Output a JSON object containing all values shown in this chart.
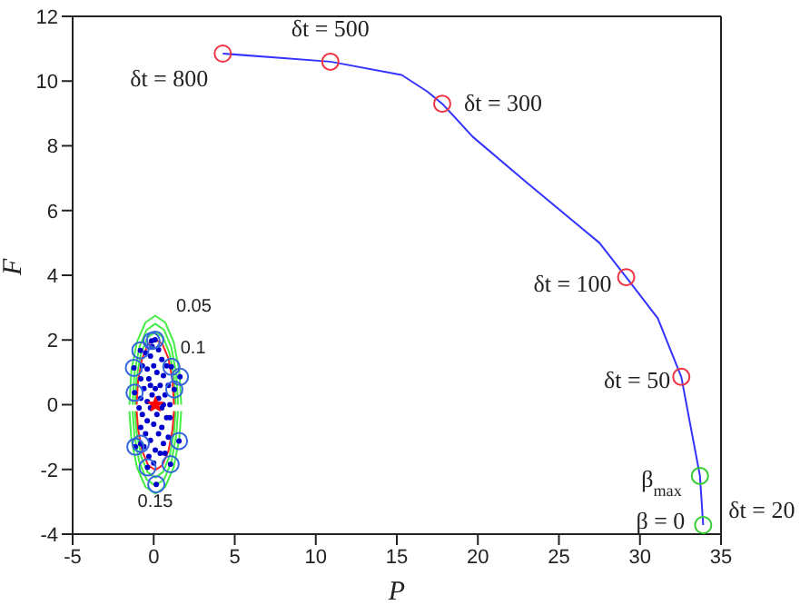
{
  "chart_data": {
    "type": "line",
    "xlabel": "P",
    "ylabel": "F",
    "xlim": [
      -5,
      35
    ],
    "ylim": [
      -4,
      12
    ],
    "xticks": [
      -5,
      0,
      5,
      10,
      15,
      20,
      25,
      30,
      35
    ],
    "yticks": [
      -4,
      -2,
      0,
      2,
      4,
      6,
      8,
      10,
      12
    ],
    "grid": false,
    "legend": false,
    "series": [
      {
        "color": "#3333ff",
        "marker": "none",
        "line_style": "solid",
        "x": [
          4.26,
          10.9,
          15.3,
          16.9,
          17.8,
          19.7,
          23.0,
          27.5,
          29.15,
          31.1,
          32.55,
          33.7,
          33.9
        ],
        "values": [
          10.85,
          10.6,
          10.19,
          9.67,
          9.3,
          8.27,
          6.87,
          5.0,
          3.94,
          2.67,
          0.86,
          -2.2,
          -3.72
        ]
      },
      {
        "type": "scatter",
        "color": "#ee3344",
        "marker": "circle",
        "x": [
          4.26,
          10.9,
          17.8,
          29.15,
          32.55
        ],
        "values": [
          10.85,
          10.6,
          9.3,
          3.94,
          0.86
        ]
      },
      {
        "type": "scatter",
        "color": "#33cc33",
        "marker": "circle",
        "x": [
          33.7,
          33.9
        ],
        "values": [
          -2.2,
          -3.72
        ]
      },
      {
        "color": "#44ee44",
        "marker": "none",
        "line_style": "solid",
        "x": [
          -1.5,
          -1.38,
          -1.03,
          -0.51,
          0.1,
          0.71,
          1.23,
          1.58,
          1.7
        ],
        "values": [
          0,
          1.05,
          1.94,
          2.54,
          2.75,
          2.54,
          1.94,
          1.05,
          0
        ]
      },
      {
        "color": "#44ee44",
        "marker": "none",
        "line_style": "solid",
        "x": [
          -1.5,
          -1.38,
          -1.03,
          -0.51,
          0.1,
          0.71,
          1.23,
          1.58,
          1.7
        ],
        "values": [
          -0.2,
          -1.05,
          -1.94,
          -2.54,
          -2.75,
          -2.54,
          -1.94,
          -1.05,
          -0.2
        ]
      },
      {
        "color": "#44ee44",
        "marker": "none",
        "line_style": "solid",
        "x": [
          -1.3,
          -1.19,
          -0.89,
          -0.44,
          0.1,
          0.64,
          1.09,
          1.39,
          1.5
        ],
        "values": [
          0,
          0.96,
          1.77,
          2.31,
          2.5,
          2.31,
          1.77,
          0.96,
          0
        ]
      },
      {
        "color": "#44ee44",
        "marker": "none",
        "line_style": "solid",
        "x": [
          -1.3,
          -1.19,
          -0.89,
          -0.44,
          0.1,
          0.64,
          1.09,
          1.39,
          1.5
        ],
        "values": [
          -0.2,
          -0.96,
          -1.77,
          -2.31,
          -2.5,
          -2.31,
          -1.77,
          -0.96,
          -0.2
        ]
      },
      {
        "color": "#44ee44",
        "marker": "none",
        "line_style": "solid",
        "x": [
          -1.15,
          -1.05,
          -0.78,
          -0.38,
          0.1,
          0.58,
          0.98,
          1.25,
          1.35
        ],
        "values": [
          0,
          0.86,
          1.59,
          2.08,
          2.25,
          2.08,
          1.59,
          0.86,
          0
        ]
      },
      {
        "color": "#44ee44",
        "marker": "none",
        "line_style": "solid",
        "x": [
          -1.15,
          -1.05,
          -0.78,
          -0.38,
          0.1,
          0.58,
          0.98,
          1.25,
          1.35
        ],
        "values": [
          -0.2,
          -0.86,
          -1.59,
          -2.08,
          -2.25,
          -2.08,
          -1.59,
          -0.86,
          -0.2
        ]
      },
      {
        "color": "#ff2222",
        "marker": "none",
        "line_style": "solid",
        "x": [
          -1.05,
          -0.96,
          -0.71,
          -0.34,
          0.1,
          0.54,
          0.91,
          1.16,
          1.25
        ],
        "values": [
          0,
          0.77,
          1.43,
          1.87,
          2.02,
          1.87,
          1.43,
          0.77,
          0
        ]
      },
      {
        "color": "#ff2222",
        "marker": "none",
        "line_style": "solid",
        "x": [
          -1.05,
          -0.96,
          -0.71,
          -0.34,
          0.1,
          0.54,
          0.91,
          1.16,
          1.25
        ],
        "values": [
          -0.2,
          -0.77,
          -1.43,
          -1.87,
          -2.02,
          -1.87,
          -1.43,
          -0.77,
          -0.2
        ]
      },
      {
        "type": "scatter",
        "color": "#0000cc",
        "x": [
          -0.5,
          -0.2,
          0.3,
          0.5,
          0.8,
          -0.7,
          -0.4,
          0.0,
          0.2,
          0.6,
          -0.8,
          -0.3,
          0.9,
          0.4,
          -0.6,
          0.1,
          -0.1,
          0.7,
          -0.8,
          0.3,
          -0.4,
          1.0,
          0.5,
          -0.2,
          -0.7,
          0.2,
          0.8,
          -0.4,
          0.0,
          0.5,
          -0.8,
          -0.5,
          0.3,
          0.9,
          -0.2,
          0.6,
          -0.6,
          0.1,
          0.4,
          -0.3,
          0.7,
          0.0,
          -0.1,
          -0.9,
          0.6,
          -0.2,
          1.0,
          -0.13,
          0.09,
          -0.82,
          -1.22,
          -1.18,
          1.09,
          1.62,
          1.27,
          1.56,
          -1.13,
          -0.8,
          -0.38,
          1.04,
          0.16
        ],
        "values": [
          1.6,
          1.5,
          1.7,
          1.4,
          1.2,
          1.2,
          1.1,
          1.2,
          1.0,
          0.9,
          0.8,
          0.8,
          0.6,
          0.6,
          0.5,
          0.5,
          0.3,
          0.3,
          0.2,
          0.2,
          0.1,
          0.0,
          -0.1,
          -0.1,
          -0.3,
          -0.3,
          -0.4,
          -0.5,
          -0.6,
          -0.7,
          -0.7,
          -0.9,
          -0.9,
          -1.0,
          -1.1,
          -1.2,
          -1.3,
          -1.4,
          -1.5,
          -1.6,
          -1.5,
          -1.8,
          1.8,
          -0.1,
          0.0,
          0.6,
          -0.4,
          1.97,
          2.01,
          1.68,
          1.14,
          0.37,
          1.17,
          0.86,
          0.47,
          -1.12,
          -1.3,
          -1.21,
          -1.94,
          -1.84,
          -2.46
        ]
      },
      {
        "type": "scatter",
        "color": "#3366dd",
        "marker": "circle",
        "x": [
          -0.13,
          0.09,
          -0.82,
          -1.22,
          -1.18,
          1.09,
          1.62,
          1.27,
          1.56,
          -1.13,
          -0.8,
          -0.38,
          1.04,
          0.16
        ],
        "values": [
          1.97,
          2.01,
          1.68,
          1.14,
          0.37,
          1.17,
          0.86,
          0.47,
          -1.12,
          -1.3,
          -1.21,
          -1.94,
          -1.84,
          -2.46
        ]
      },
      {
        "type": "scatter",
        "color": "#ff0000",
        "marker": "star",
        "x": [
          0.11
        ],
        "values": [
          0
        ]
      }
    ],
    "annotations": [
      {
        "text": "δt = 800",
        "x": 4.26,
        "y": 10.85
      },
      {
        "text": "δt = 500",
        "x": 10.9,
        "y": 10.6
      },
      {
        "text": "δt = 300",
        "x": 17.8,
        "y": 9.3
      },
      {
        "text": "δt = 100",
        "x": 29.15,
        "y": 3.94
      },
      {
        "text": "δt = 50",
        "x": 32.55,
        "y": 0.86
      },
      {
        "text": "β$_{max}$",
        "x": 33.7,
        "y": -2.2
      },
      {
        "text": "β = 0",
        "x": 33.9,
        "y": -3.72
      },
      {
        "text": "δt = 20",
        "x": 33.9,
        "y": -3.72
      },
      {
        "text": "0.05",
        "x": 0.71,
        "y": 2.54
      },
      {
        "text": "0.1",
        "x": 0.98,
        "y": 1.59
      },
      {
        "text": "0.15",
        "x": 0.1,
        "y": -2.25
      }
    ]
  }
}
